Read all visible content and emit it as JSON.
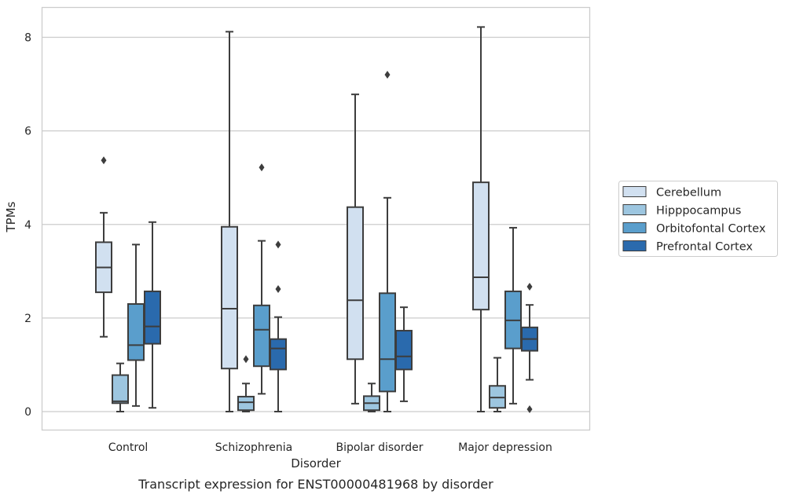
{
  "chart_data": {
    "type": "box",
    "title": "",
    "caption": "Transcript expression for ENST00000481968 by disorder",
    "xlabel": "Disorder",
    "ylabel": "TPMs",
    "ylim": [
      -0.4,
      8.65
    ],
    "yticks": [
      0,
      2,
      4,
      6,
      8
    ],
    "grid": "horizontal",
    "legend_position": "right",
    "categories": [
      "Control",
      "Schizophrenia",
      "Bipolar disorder",
      "Major depression"
    ],
    "series": [
      {
        "name": "Cerebellum",
        "color": "#d1e0f0",
        "boxes": [
          {
            "whisker_low": 1.6,
            "q1": 2.55,
            "median": 3.08,
            "q3": 3.62,
            "whisker_high": 4.25,
            "outliers": [
              5.37
            ]
          },
          {
            "whisker_low": 0.0,
            "q1": 0.92,
            "median": 2.2,
            "q3": 3.95,
            "whisker_high": 8.12,
            "outliers": []
          },
          {
            "whisker_low": 0.17,
            "q1": 1.12,
            "median": 2.38,
            "q3": 4.37,
            "whisker_high": 6.78,
            "outliers": []
          },
          {
            "whisker_low": 0.0,
            "q1": 2.18,
            "median": 2.87,
            "q3": 4.9,
            "whisker_high": 8.22,
            "outliers": []
          }
        ]
      },
      {
        "name": "Hipppocampus",
        "color": "#9dc6e0",
        "boxes": [
          {
            "whisker_low": 0.0,
            "q1": 0.18,
            "median": 0.22,
            "q3": 0.78,
            "whisker_high": 1.03,
            "outliers": []
          },
          {
            "whisker_low": 0.0,
            "q1": 0.03,
            "median": 0.2,
            "q3": 0.32,
            "whisker_high": 0.6,
            "outliers": [
              1.12
            ]
          },
          {
            "whisker_low": 0.0,
            "q1": 0.03,
            "median": 0.18,
            "q3": 0.33,
            "whisker_high": 0.6,
            "outliers": []
          },
          {
            "whisker_low": 0.0,
            "q1": 0.08,
            "median": 0.3,
            "q3": 0.55,
            "whisker_high": 1.15,
            "outliers": []
          }
        ]
      },
      {
        "name": "Orbitofontal Cortex",
        "color": "#5a9ecc",
        "boxes": [
          {
            "whisker_low": 0.12,
            "q1": 1.1,
            "median": 1.42,
            "q3": 2.3,
            "whisker_high": 3.57,
            "outliers": []
          },
          {
            "whisker_low": 0.38,
            "q1": 0.97,
            "median": 1.75,
            "q3": 2.27,
            "whisker_high": 3.65,
            "outliers": [
              5.22
            ]
          },
          {
            "whisker_low": 0.0,
            "q1": 0.43,
            "median": 1.12,
            "q3": 2.53,
            "whisker_high": 4.57,
            "outliers": [
              7.2
            ]
          },
          {
            "whisker_low": 0.17,
            "q1": 1.35,
            "median": 1.95,
            "q3": 2.57,
            "whisker_high": 3.93,
            "outliers": []
          }
        ]
      },
      {
        "name": "Prefrontal Cortex",
        "color": "#2a6aad",
        "boxes": [
          {
            "whisker_low": 0.08,
            "q1": 1.45,
            "median": 1.82,
            "q3": 2.57,
            "whisker_high": 4.05,
            "outliers": []
          },
          {
            "whisker_low": 0.0,
            "q1": 0.9,
            "median": 1.35,
            "q3": 1.55,
            "whisker_high": 2.02,
            "outliers": [
              2.62,
              3.57
            ]
          },
          {
            "whisker_low": 0.22,
            "q1": 0.9,
            "median": 1.18,
            "q3": 1.73,
            "whisker_high": 2.23,
            "outliers": []
          },
          {
            "whisker_low": 0.68,
            "q1": 1.3,
            "median": 1.55,
            "q3": 1.8,
            "whisker_high": 2.28,
            "outliers": [
              2.67,
              0.05
            ]
          }
        ]
      }
    ]
  }
}
